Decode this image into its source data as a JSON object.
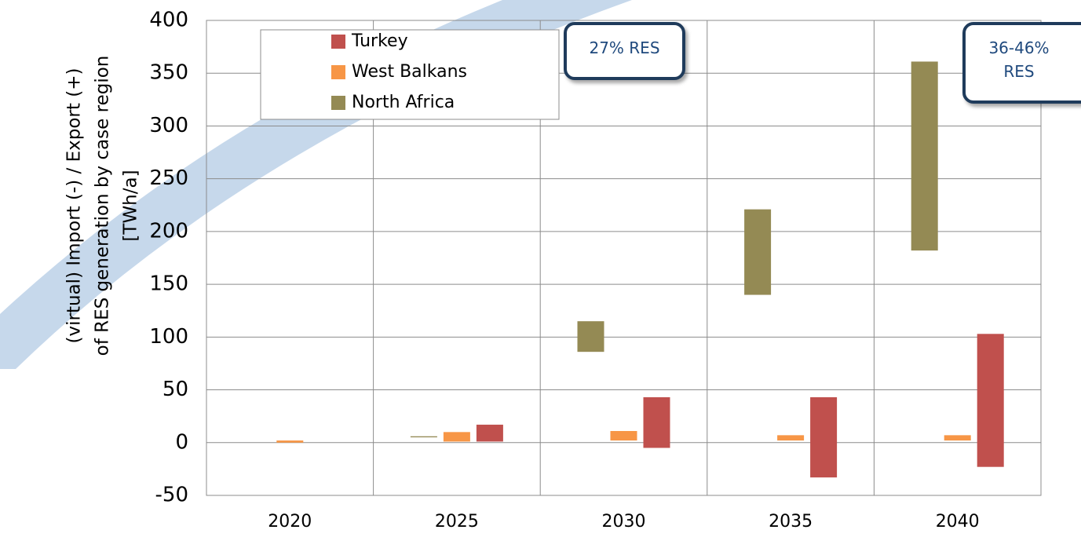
{
  "chart_data": {
    "type": "bar",
    "y_label_lines": [
      "(virtual) Import (-) / Export (+)",
      "of RES generation by case region",
      "[TWh/a]"
    ],
    "categories": [
      "2020",
      "2025",
      "2030",
      "2035",
      "2040"
    ],
    "series": [
      {
        "name": "Turkey",
        "color": "#c0504d",
        "low": [
          null,
          1,
          -5,
          -33,
          -23
        ],
        "high": [
          null,
          17,
          43,
          43,
          103
        ]
      },
      {
        "name": "West Balkans",
        "color": "#f79646",
        "low": [
          0,
          1,
          2,
          2,
          2
        ],
        "high": [
          2,
          10,
          11,
          7,
          7
        ]
      },
      {
        "name": "North Africa",
        "color": "#948a54",
        "low": [
          null,
          5,
          86,
          140,
          182
        ],
        "high": [
          null,
          6,
          115,
          221,
          361
        ]
      }
    ],
    "ylim": [
      -50,
      400
    ],
    "yticks": [
      -50,
      0,
      50,
      100,
      150,
      200,
      250,
      300,
      350,
      400
    ],
    "grid": true,
    "annotations": [
      "27% RES",
      "36-46% RES"
    ]
  }
}
